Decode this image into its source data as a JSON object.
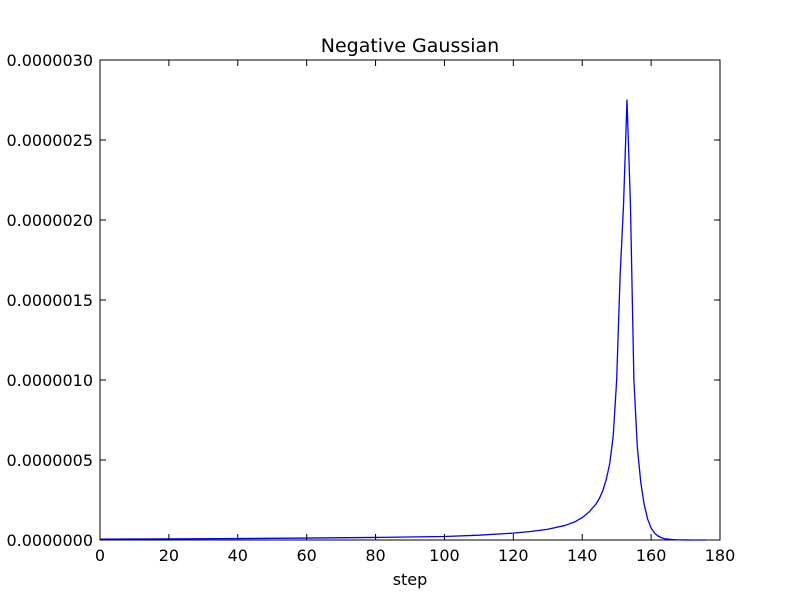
{
  "chart_data": {
    "type": "line",
    "title": "Negative Gaussian",
    "xlabel": "step",
    "ylabel": "",
    "xlim": [
      0,
      180
    ],
    "ylim": [
      0,
      3e-06
    ],
    "x_ticks": [
      0,
      20,
      40,
      60,
      80,
      100,
      120,
      140,
      160,
      180
    ],
    "x_tick_labels": [
      "0",
      "20",
      "40",
      "60",
      "80",
      "100",
      "120",
      "140",
      "160",
      "180"
    ],
    "y_ticks": [
      0,
      5e-07,
      1e-06,
      1.5e-06,
      2e-06,
      2.5e-06,
      3e-06
    ],
    "y_tick_labels": [
      "0.0000000",
      "0.0000005",
      "0.0000010",
      "0.0000015",
      "0.0000020",
      "0.0000025",
      "0.0000030"
    ],
    "grid": false,
    "line_color": "#0000ff",
    "series": [
      {
        "x": [
          0,
          20,
          40,
          60,
          80,
          100,
          110,
          120,
          125,
          130,
          135,
          138,
          140,
          142,
          144,
          145,
          146,
          147,
          148,
          149,
          150,
          151,
          152,
          153,
          154,
          155,
          156,
          157,
          158,
          159,
          160,
          161,
          162,
          163,
          164,
          166,
          168,
          170,
          172,
          174,
          176
        ],
        "y": [
          5e-09,
          7e-09,
          9e-09,
          1.2e-08,
          1.6e-08,
          2.2e-08,
          3e-08,
          4.3e-08,
          5.3e-08,
          6.7e-08,
          9.1e-08,
          1.15e-07,
          1.4e-07,
          1.75e-07,
          2.25e-07,
          2.6e-07,
          3.1e-07,
          3.8e-07,
          4.8e-07,
          6.5e-07,
          1e-06,
          1.65e-06,
          2.1e-06,
          2.75e-06,
          2.1e-06,
          1e-06,
          5.8e-07,
          3.6e-07,
          2.2e-07,
          1.3e-07,
          7.5e-08,
          4.3e-08,
          2.5e-08,
          1.4e-08,
          8e-09,
          3e-09,
          1e-09,
          5e-10,
          2e-10,
          1e-10,
          0.0
        ]
      }
    ]
  }
}
